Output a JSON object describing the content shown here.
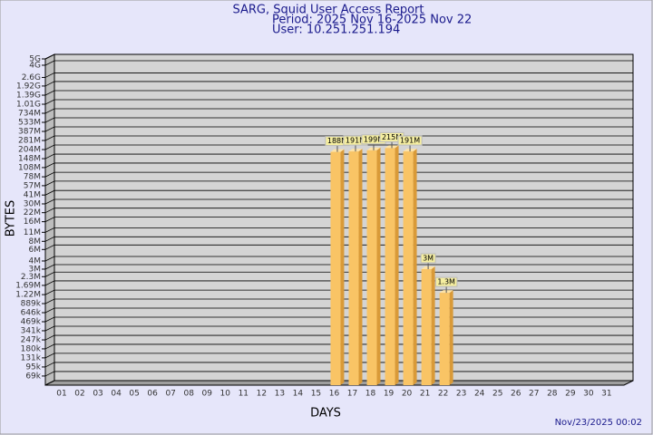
{
  "chart_data": {
    "type": "bar",
    "title": "SARG, Squid User Access Report",
    "subtitle": "Period: 2025 Nov 16-2025 Nov 22",
    "user": "User: 10.251.251.194",
    "x_label": "DAYS",
    "y_label": "BYTES",
    "footer": "Nov/23/2025 00:02",
    "categories": [
      "01",
      "02",
      "03",
      "04",
      "05",
      "06",
      "07",
      "08",
      "09",
      "10",
      "11",
      "12",
      "13",
      "14",
      "15",
      "16",
      "17",
      "18",
      "19",
      "20",
      "21",
      "22",
      "23",
      "24",
      "25",
      "26",
      "27",
      "28",
      "29",
      "30",
      "31"
    ],
    "values": [
      null,
      null,
      null,
      null,
      null,
      null,
      null,
      null,
      null,
      null,
      null,
      null,
      null,
      null,
      null,
      188000000,
      191000000,
      199000000,
      215000000,
      191000000,
      3000000,
      1300000,
      null,
      null,
      null,
      null,
      null,
      null,
      null,
      null,
      null
    ],
    "value_labels": [
      null,
      null,
      null,
      null,
      null,
      null,
      null,
      null,
      null,
      null,
      null,
      null,
      null,
      null,
      null,
      "188M",
      "191M",
      "199M",
      "215M",
      "191M",
      "3M",
      "1.3M",
      null,
      null,
      null,
      null,
      null,
      null,
      null,
      null,
      null
    ],
    "color": "#f9c465",
    "log_scale": true,
    "grid": true,
    "ylim": [
      50000,
      5000000000
    ],
    "yticks": [
      {
        "value": 5000000000,
        "label": "5G"
      },
      {
        "value": 4000000000,
        "label": "4G"
      },
      {
        "value": 2600000000,
        "label": "2.6G"
      },
      {
        "value": 1920000000,
        "label": "1.92G"
      },
      {
        "value": 1390000000,
        "label": "1.39G"
      },
      {
        "value": 1010000000,
        "label": "1.01G"
      },
      {
        "value": 734000000,
        "label": "734M"
      },
      {
        "value": 533000000,
        "label": "533M"
      },
      {
        "value": 387000000,
        "label": "387M"
      },
      {
        "value": 281000000,
        "label": "281M"
      },
      {
        "value": 204000000,
        "label": "204M"
      },
      {
        "value": 148000000,
        "label": "148M"
      },
      {
        "value": 108000000,
        "label": "108M"
      },
      {
        "value": 78000000,
        "label": "78M"
      },
      {
        "value": 57000000,
        "label": "57M"
      },
      {
        "value": 41000000,
        "label": "41M"
      },
      {
        "value": 30000000,
        "label": "30M"
      },
      {
        "value": 22000000,
        "label": "22M"
      },
      {
        "value": 16000000,
        "label": "16M"
      },
      {
        "value": 11000000,
        "label": "11M"
      },
      {
        "value": 8000000,
        "label": "8M"
      },
      {
        "value": 6000000,
        "label": "6M"
      },
      {
        "value": 4000000,
        "label": "4M"
      },
      {
        "value": 3000000,
        "label": "3M"
      },
      {
        "value": 2300000,
        "label": "2.3M"
      },
      {
        "value": 1690000,
        "label": "1.69M"
      },
      {
        "value": 1220000,
        "label": "1.22M"
      },
      {
        "value": 889000,
        "label": "889k"
      },
      {
        "value": 646000,
        "label": "646k"
      },
      {
        "value": 469000,
        "label": "469k"
      },
      {
        "value": 341000,
        "label": "341k"
      },
      {
        "value": 247000,
        "label": "247k"
      },
      {
        "value": 180000,
        "label": "180k"
      },
      {
        "value": 131000,
        "label": "131k"
      },
      {
        "value": 95000,
        "label": "95k"
      },
      {
        "value": 69000,
        "label": "69k"
      }
    ]
  }
}
